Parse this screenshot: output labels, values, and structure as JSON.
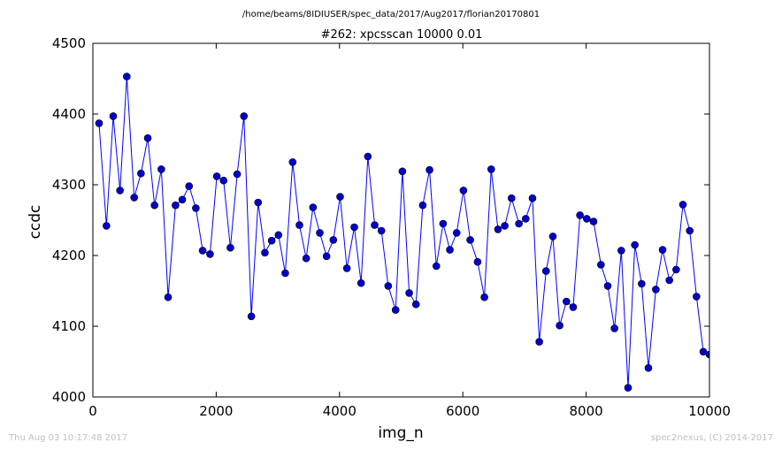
{
  "header": {
    "path": "/home/beams/8IDIUSER/spec_data/2017/Aug2017/florian20170801"
  },
  "footer": {
    "timestamp": "Thu Aug 03 10:17:48 2017",
    "credit": "spec2nexus, (C) 2014-2017"
  },
  "colors": {
    "line": "#0000ff",
    "marker": "#0000cc",
    "frame": "#000000"
  },
  "chart_data": {
    "type": "line",
    "title": "#262: xpcsscan 10000 0.01",
    "xlabel": "img_n",
    "ylabel": "ccdc",
    "xlim": [
      0,
      10000
    ],
    "ylim": [
      4000,
      4500
    ],
    "xticks": [
      0,
      2000,
      4000,
      6000,
      8000,
      10000
    ],
    "yticks": [
      4000,
      4100,
      4200,
      4300,
      4400,
      4500
    ],
    "grid": false,
    "series": [
      {
        "x": [
          100,
          220,
          330,
          440,
          550,
          670,
          780,
          890,
          1000,
          1110,
          1220,
          1340,
          1450,
          1560,
          1670,
          1780,
          1900,
          2010,
          2120,
          2230,
          2340,
          2450,
          2570,
          2680,
          2790,
          2900,
          3010,
          3120,
          3240,
          3350,
          3460,
          3570,
          3680,
          3790,
          3900,
          4010,
          4120,
          4240,
          4350,
          4460,
          4570,
          4680,
          4790,
          4910,
          5020,
          5130,
          5240,
          5350,
          5460,
          5570,
          5680,
          5790,
          5900,
          6010,
          6120,
          6240,
          6350,
          6460,
          6570,
          6680,
          6790,
          6910,
          7020,
          7130,
          7240,
          7350,
          7460,
          7570,
          7680,
          7790,
          7900,
          8010,
          8120,
          8240,
          8350,
          8460,
          8570,
          8680,
          8790,
          8900,
          9010,
          9130,
          9240,
          9350,
          9460,
          9570,
          9680,
          9790,
          9900,
          10000,
          10010
        ],
        "y": [
          4387,
          4242,
          4397,
          4292,
          4453,
          4282,
          4316,
          4366,
          4271,
          4322,
          4141,
          4271,
          4279,
          4298,
          4267,
          4207,
          4202,
          4312,
          4306,
          4211,
          4315,
          4397,
          4114,
          4275,
          4204,
          4221,
          4229,
          4175,
          4332,
          4243,
          4196,
          4268,
          4232,
          4199,
          4222,
          4283,
          4182,
          4240,
          4161,
          4340,
          4243,
          4235,
          4157,
          4123,
          4319,
          4147,
          4131,
          4271,
          4321,
          4185,
          4245,
          4208,
          4232,
          4292,
          4222,
          4191,
          4141,
          4322,
          4237,
          4242,
          4281,
          4245,
          4252,
          4281,
          4078,
          4178,
          4227,
          4101,
          4135,
          4127,
          4257,
          4252,
          4248,
          4187,
          4157,
          4097,
          4207,
          4013,
          4215,
          4160,
          4041,
          4152,
          4208,
          4165,
          4180,
          4272,
          4235,
          4142,
          4064,
          4060,
          4060
        ]
      }
    ]
  }
}
